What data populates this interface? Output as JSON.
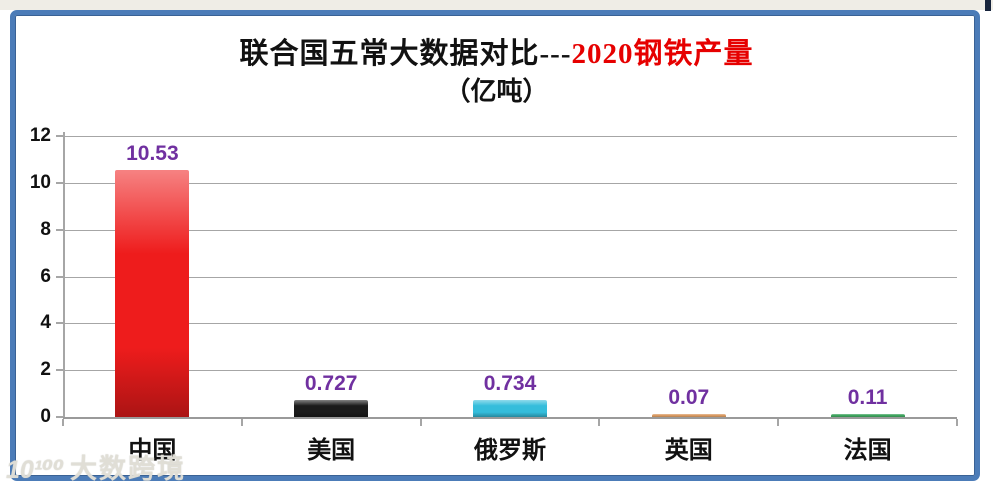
{
  "page": {
    "top_strip_color": "#efede6",
    "frame_border_color": "#4c7cb8"
  },
  "header": {
    "title_black": "联合国五常大数据对比---",
    "title_red": "2020钢铁产量",
    "title_red_color": "#e60000",
    "subtitle": "（亿吨）"
  },
  "chart_data": {
    "type": "bar",
    "title": "联合国五常大数据对比---2020钢铁产量",
    "subtitle": "（亿吨）",
    "categories": [
      "中国",
      "美国",
      "俄罗斯",
      "英国",
      "法国"
    ],
    "values": [
      10.53,
      0.727,
      0.734,
      0.07,
      0.11
    ],
    "value_labels": [
      "10.53",
      "0.727",
      "0.734",
      "0.07",
      "0.11"
    ],
    "bar_colors": [
      "#ee1c1c",
      "#1b1b1b",
      "#35bddb",
      "#d99a62",
      "#3fa45f"
    ],
    "value_label_color": "#7030a0",
    "xlabel": "",
    "ylabel": "",
    "ylim": [
      0,
      12
    ],
    "yticks": [
      0,
      2,
      4,
      6,
      8,
      10,
      12
    ],
    "grid": true,
    "gridline_color": "#a6a6a6",
    "legend": "none"
  },
  "watermark": {
    "logo": "10¹⁰⁰",
    "text": "大数跨境"
  }
}
